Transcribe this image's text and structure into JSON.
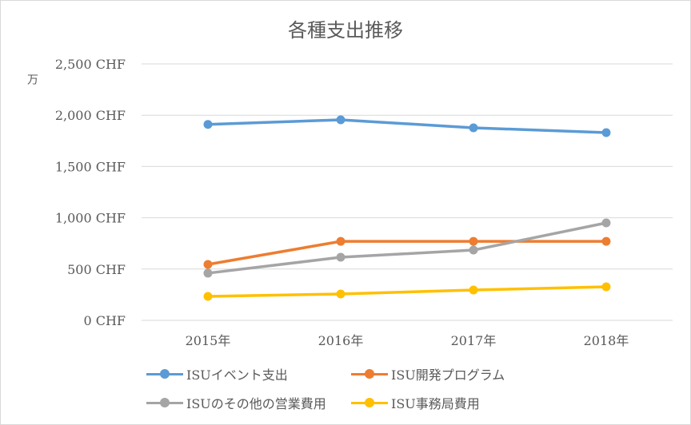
{
  "chart_data": {
    "type": "line",
    "title": "各種支出推移",
    "ylabel": "万",
    "categories": [
      "2015年",
      "2016年",
      "2017年",
      "2018年"
    ],
    "yticks": [
      "0 CHF",
      "500 CHF",
      "1,000 CHF",
      "1,500 CHF",
      "2,000 CHF",
      "2,500 CHF"
    ],
    "ylim": [
      0,
      2500
    ],
    "grid": true,
    "legend_position": "bottom",
    "series": [
      {
        "name": "ISUイベント支出",
        "color": "#5b9bd5",
        "values": [
          1910,
          1955,
          1877,
          1830
        ]
      },
      {
        "name": "ISU開発プログラム",
        "color": "#ed7d31",
        "values": [
          545,
          770,
          770,
          770
        ]
      },
      {
        "name": "ISUのその他の営業費用",
        "color": "#a5a5a5",
        "values": [
          460,
          615,
          685,
          950
        ]
      },
      {
        "name": "ISU事務局費用",
        "color": "#ffc000",
        "values": [
          234,
          257,
          296,
          327
        ]
      }
    ]
  }
}
